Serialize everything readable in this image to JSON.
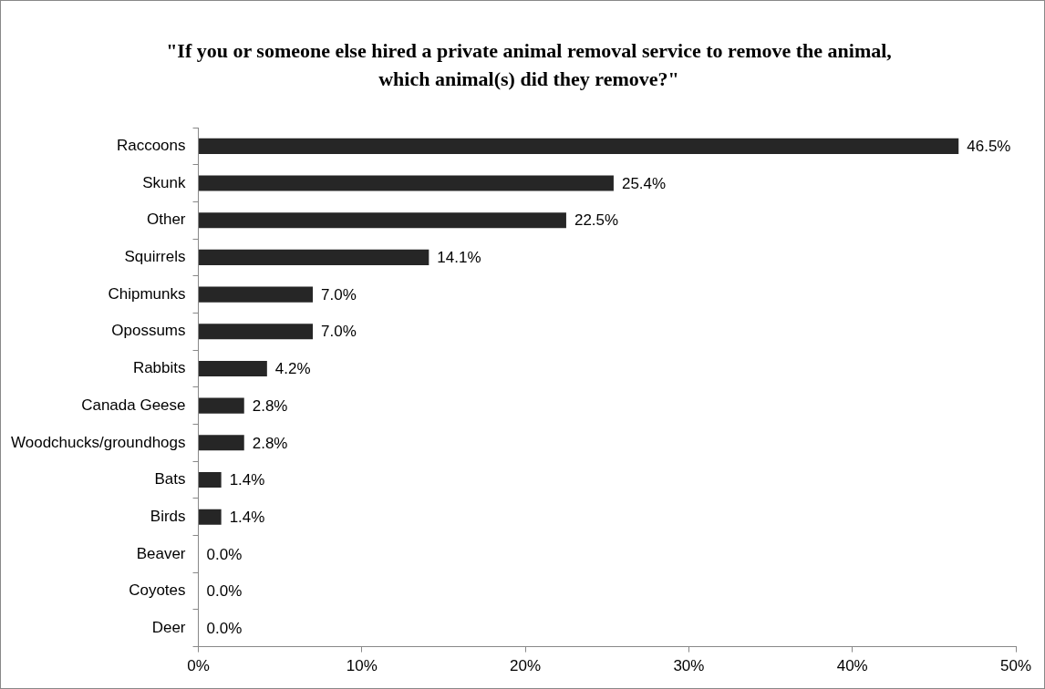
{
  "chart_data": {
    "type": "bar",
    "orientation": "horizontal",
    "title": "\"If you or someone else hired a private animal removal service to remove the animal, which animal(s) did they remove?\"",
    "categories": [
      "Raccoons",
      "Skunk",
      "Other",
      "Squirrels",
      "Chipmunks",
      "Opossums",
      "Rabbits",
      "Canada Geese",
      "Woodchucks/groundhogs",
      "Bats",
      "Birds",
      "Beaver",
      "Coyotes",
      "Deer"
    ],
    "values": [
      46.5,
      25.4,
      22.5,
      14.1,
      7.0,
      7.0,
      4.2,
      2.8,
      2.8,
      1.4,
      1.4,
      0.0,
      0.0,
      0.0
    ],
    "value_labels": [
      "46.5%",
      "25.4%",
      "22.5%",
      "14.1%",
      "7.0%",
      "7.0%",
      "4.2%",
      "2.8%",
      "2.8%",
      "1.4%",
      "1.4%",
      "0.0%",
      "0.0%",
      "0.0%"
    ],
    "color": "#262626",
    "xlim": [
      0,
      50
    ],
    "xticks": [
      {
        "value": 0,
        "label": "0%"
      },
      {
        "value": 10,
        "label": "10%"
      },
      {
        "value": 20,
        "label": "20%"
      },
      {
        "value": 30,
        "label": "30%"
      },
      {
        "value": 40,
        "label": "40%"
      },
      {
        "value": 50,
        "label": "50%"
      }
    ],
    "grid": false,
    "legend": false
  }
}
